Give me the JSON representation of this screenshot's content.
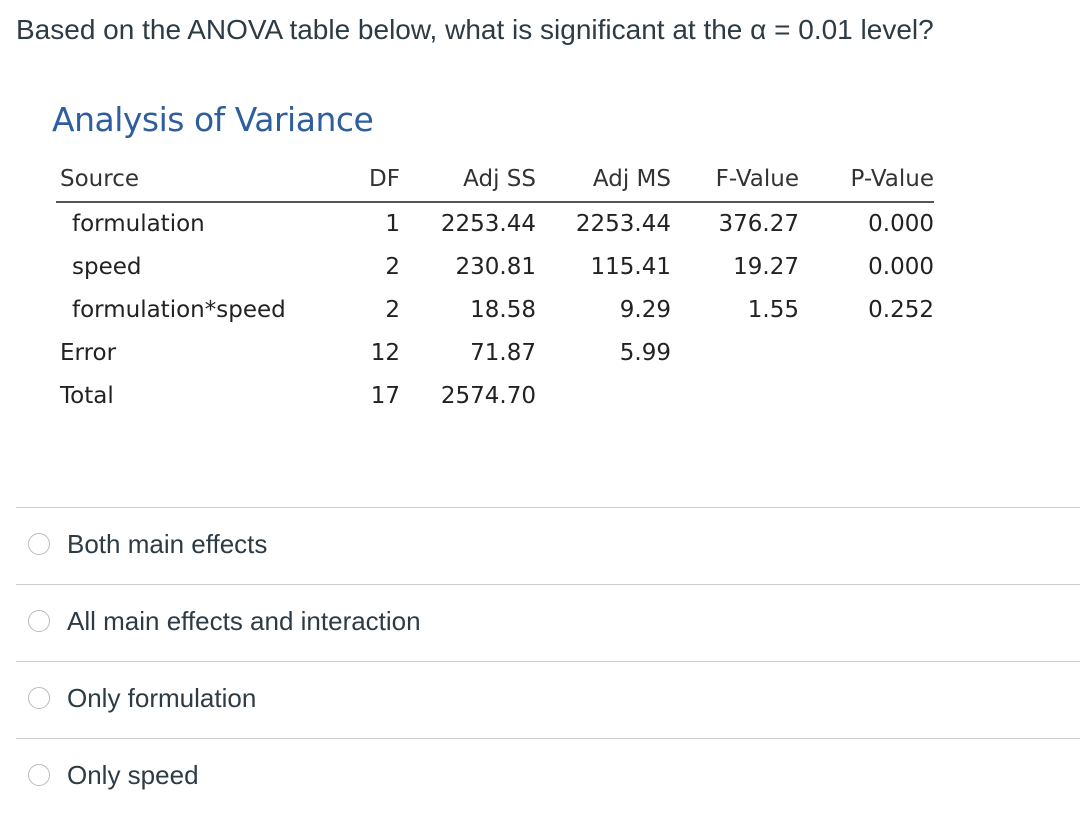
{
  "question": "Based on the ANOVA table below, what is significant at the α = 0.01 level?",
  "anova": {
    "title": "Analysis of Variance",
    "columns": [
      "Source",
      "DF",
      "Adj SS",
      "Adj MS",
      "F-Value",
      "P-Value"
    ],
    "rows": [
      [
        "formulation",
        "1",
        "2253.44",
        "2253.44",
        "376.27",
        "0.000"
      ],
      [
        "speed",
        "2",
        "230.81",
        "115.41",
        "19.27",
        "0.000"
      ],
      [
        "formulation*speed",
        "2",
        "18.58",
        "9.29",
        "1.55",
        "0.252"
      ],
      [
        "Error",
        "12",
        "71.87",
        "5.99",
        "",
        ""
      ],
      [
        "Total",
        "17",
        "2574.70",
        "",
        "",
        ""
      ]
    ]
  },
  "choices": [
    {
      "label": "Both main effects",
      "selected": false
    },
    {
      "label": "All main effects and interaction",
      "selected": false
    },
    {
      "label": "Only formulation",
      "selected": false
    },
    {
      "label": "Only speed",
      "selected": false
    }
  ]
}
